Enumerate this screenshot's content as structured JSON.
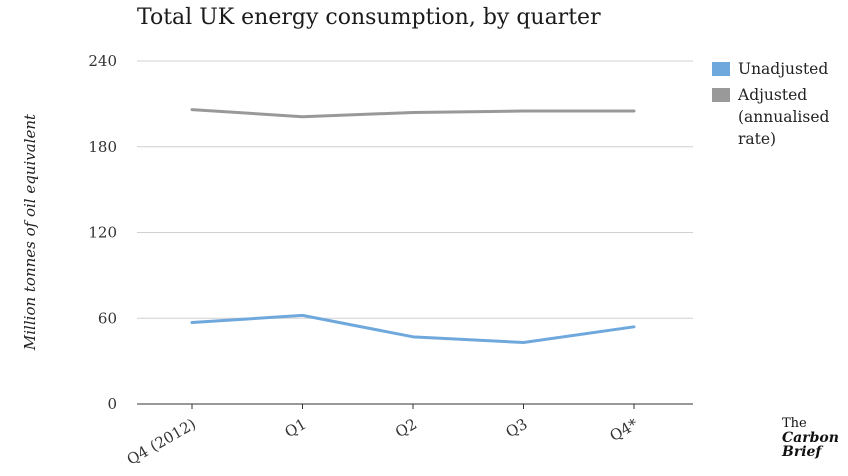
{
  "chart_data": {
    "type": "line",
    "title": "Total UK energy consumption, by quarter",
    "xlabel": "",
    "ylabel": "Million tonnes of oil equivalent",
    "categories": [
      "Q4 (2012)",
      "Q1",
      "Q2",
      "Q3",
      "Q4*"
    ],
    "ylim": [
      0,
      240
    ],
    "yticks": [
      "0",
      "60",
      "120",
      "180",
      "240"
    ],
    "grid": true,
    "legend_position": "right",
    "series": [
      {
        "name": "Unadjusted",
        "color": "#6fa8dc",
        "values": [
          57,
          62,
          47,
          43,
          54
        ]
      },
      {
        "name": "Adjusted (annualised rate)",
        "color": "#999999",
        "values": [
          206,
          201,
          204,
          205,
          205
        ]
      }
    ]
  },
  "branding": {
    "the": "The",
    "name": "Carbon\nBrief"
  }
}
